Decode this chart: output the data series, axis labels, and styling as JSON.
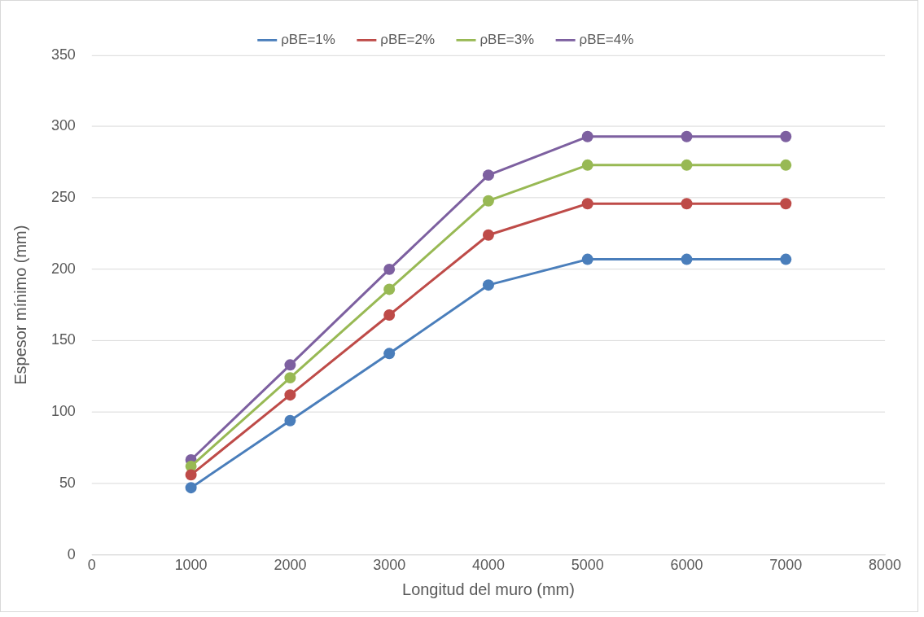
{
  "chart_data": {
    "type": "line",
    "xlabel": "Longitud del muro (mm)",
    "ylabel": "Espesor mínimo (mm)",
    "x": [
      1000,
      2000,
      3000,
      4000,
      5000,
      6000,
      7000
    ],
    "xlim": [
      0,
      8000
    ],
    "xticks": [
      0,
      1000,
      2000,
      3000,
      4000,
      5000,
      6000,
      7000,
      8000
    ],
    "ylim": [
      0,
      350
    ],
    "yticks": [
      0,
      50,
      100,
      150,
      200,
      250,
      300,
      350
    ],
    "grid": "y",
    "legend": "top",
    "marker": "circle",
    "line_style": "solid",
    "series": [
      {
        "name": "ρBE=1%",
        "color": "#4a7ebb",
        "values": [
          47,
          94,
          141,
          189,
          207,
          207,
          207
        ]
      },
      {
        "name": "ρBE=2%",
        "color": "#be4b48",
        "values": [
          56,
          112,
          168,
          224,
          246,
          246,
          246
        ]
      },
      {
        "name": "ρBE=3%",
        "color": "#98b954",
        "values": [
          62,
          124,
          186,
          248,
          273,
          273,
          273
        ]
      },
      {
        "name": "ρBE=4%",
        "color": "#7d60a0",
        "values": [
          66.5,
          133,
          200,
          266,
          293,
          293,
          293
        ]
      }
    ]
  }
}
